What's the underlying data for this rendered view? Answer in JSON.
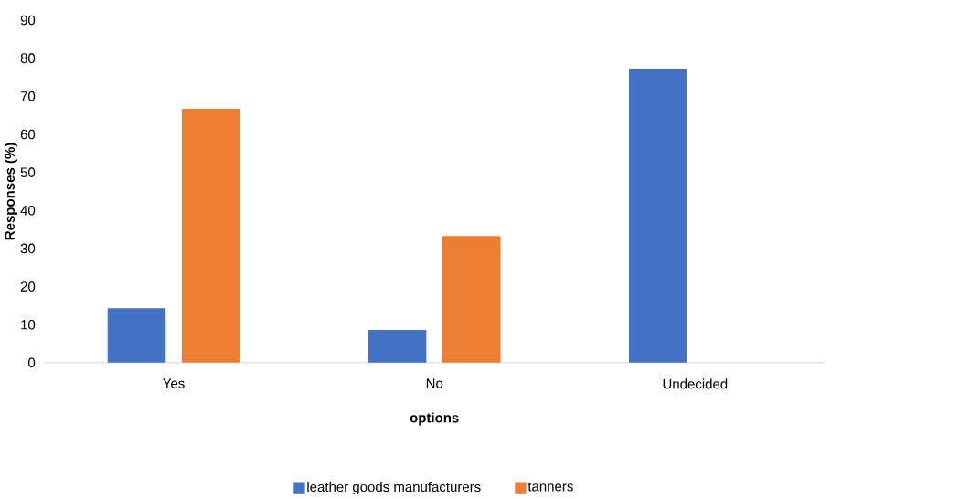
{
  "chart_data": {
    "type": "bar",
    "xlabel": "options",
    "ylabel": "Responses (%)",
    "categories": [
      "Yes",
      "No",
      "Undecided"
    ],
    "series": [
      {
        "name": "leather goods manufacturers",
        "color": "#4472c4",
        "values": [
          14.3,
          8.6,
          77.1
        ]
      },
      {
        "name": "tanners",
        "color": "#ed7d31",
        "values": [
          66.7,
          33.3,
          0
        ]
      }
    ],
    "ylim": [
      0,
      90
    ],
    "yticks": [
      0,
      10,
      20,
      30,
      40,
      50,
      60,
      70,
      80,
      90
    ],
    "legend": "bottom"
  }
}
